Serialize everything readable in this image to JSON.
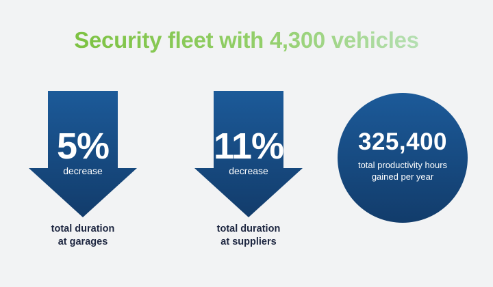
{
  "title": "Security fleet with 4,300 vehicles",
  "colors": {
    "title_green": "#7dc242",
    "navy_top": "#1c5a99",
    "navy_bottom": "#123c6b",
    "caption_text": "#1d2640",
    "background": "#f2f3f4"
  },
  "stats": [
    {
      "shape": "down-arrow",
      "value": "5%",
      "label": "decrease",
      "caption_line1": "total duration",
      "caption_line2": "at garages"
    },
    {
      "shape": "down-arrow",
      "value": "11%",
      "label": "decrease",
      "caption_line1": "total duration",
      "caption_line2": "at suppliers"
    },
    {
      "shape": "circle",
      "value": "325,400",
      "label_line1": "total productivity hours",
      "label_line2": "gained per year"
    }
  ]
}
